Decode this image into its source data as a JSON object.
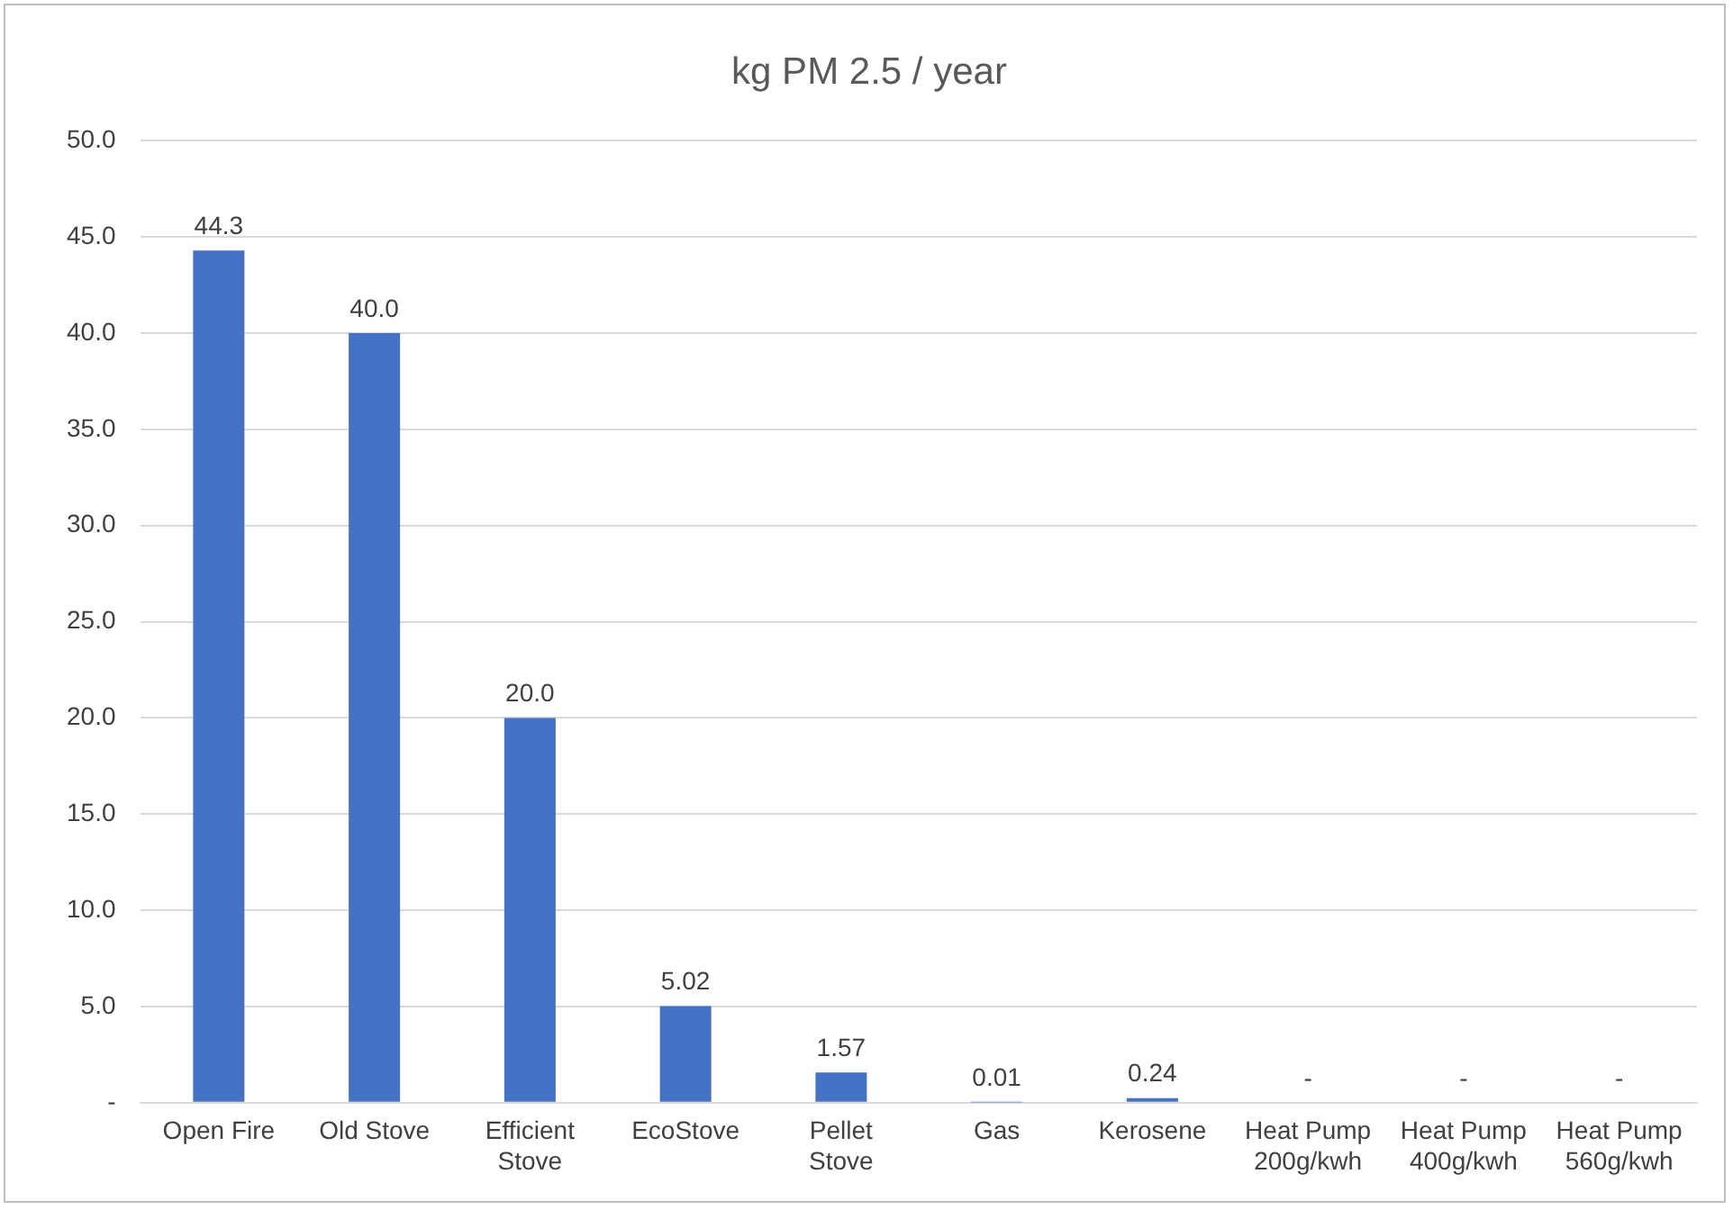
{
  "chart_data": {
    "type": "bar",
    "title": "kg PM 2.5 / year",
    "categories": [
      "Open Fire",
      "Old Stove",
      "Efficient Stove",
      "EcoStove",
      "Pellet Stove",
      "Gas",
      "Kerosene",
      "Heat Pump 200g/kwh",
      "Heat Pump 400g/kwh",
      "Heat Pump 560g/kwh"
    ],
    "values": [
      44.3,
      40.0,
      20.0,
      5.02,
      1.57,
      0.01,
      0.24,
      0,
      0,
      0
    ],
    "value_labels": [
      "44.3",
      "40.0",
      "20.0",
      "5.02",
      "1.57",
      "0.01",
      "0.24",
      "-",
      "-",
      "-"
    ],
    "color": "#4472c4",
    "ylim": [
      0,
      50
    ],
    "yticks": [
      {
        "value": 0,
        "label": "-"
      },
      {
        "value": 5,
        "label": "5.0"
      },
      {
        "value": 10,
        "label": "10.0"
      },
      {
        "value": 15,
        "label": "15.0"
      },
      {
        "value": 20,
        "label": "20.0"
      },
      {
        "value": 25,
        "label": "25.0"
      },
      {
        "value": 30,
        "label": "30.0"
      },
      {
        "value": 35,
        "label": "35.0"
      },
      {
        "value": 40,
        "label": "40.0"
      },
      {
        "value": 45,
        "label": "45.0"
      },
      {
        "value": 50,
        "label": "50.0"
      }
    ],
    "grid": "y",
    "legend": false
  }
}
